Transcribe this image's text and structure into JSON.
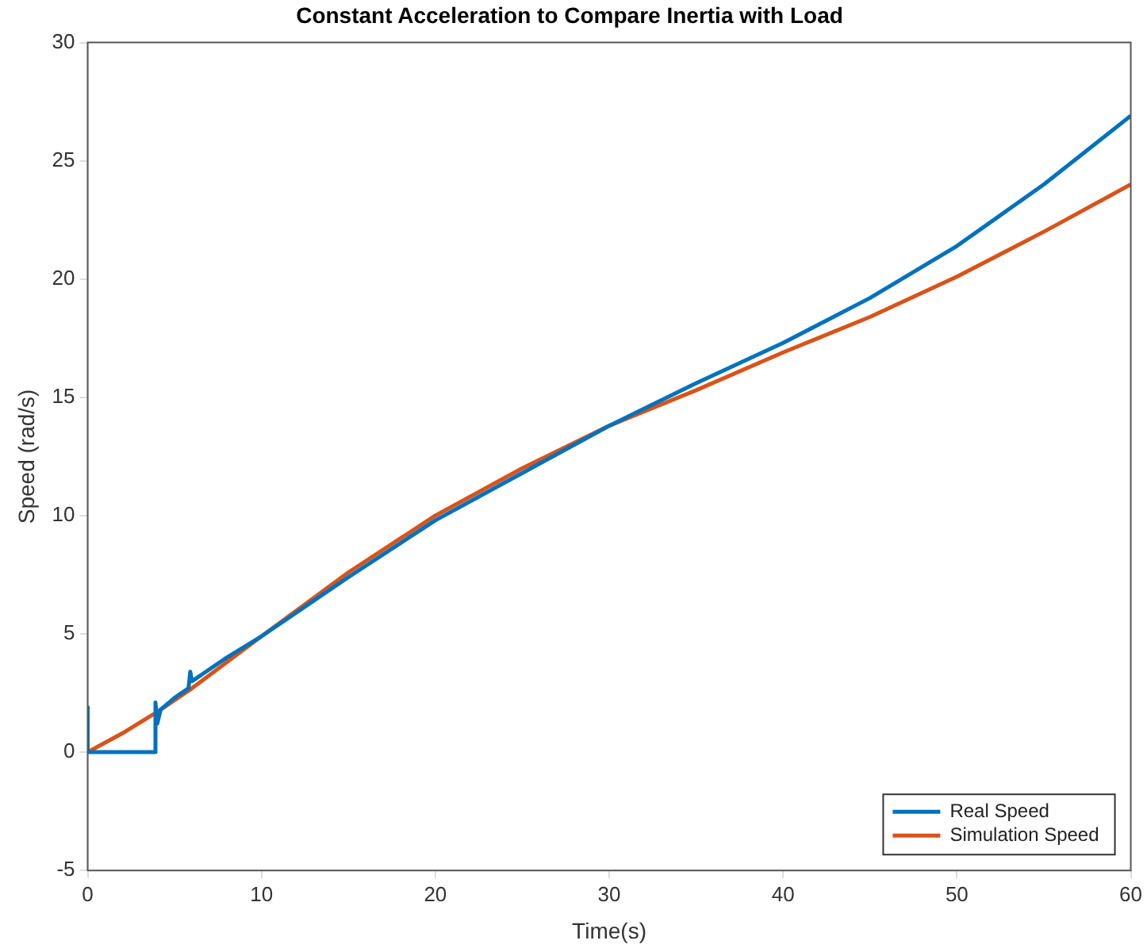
{
  "chart_data": {
    "type": "line",
    "title": "Constant Acceleration to Compare Inertia with Load",
    "xlabel": "Time(s)",
    "ylabel": "Speed (rad/s)",
    "xlim": [
      0,
      60
    ],
    "xticks": [
      0,
      10,
      20,
      30,
      40,
      50,
      60
    ],
    "ylim": [
      -5,
      30
    ],
    "yticks": [
      -5,
      0,
      5,
      10,
      15,
      20,
      25,
      30
    ],
    "grid": false,
    "legend": "bottom right",
    "marker": "none",
    "line_style": "solid",
    "series": [
      {
        "name": "Real Speed",
        "color": "#0072bd",
        "x": [
          0,
          0,
          0,
          3.9,
          3.9,
          4,
          4.2,
          5,
          5.8,
          5.9,
          6,
          7,
          8,
          10,
          12,
          15,
          20,
          25,
          30,
          35,
          40,
          45,
          50,
          55,
          60
        ],
        "values": [
          0,
          1.9,
          0,
          0,
          2.1,
          1.2,
          1.8,
          2.3,
          2.7,
          3.4,
          3,
          3.5,
          4,
          4.9,
          5.9,
          7.4,
          9.8,
          11.8,
          13.8,
          15.6,
          17.3,
          19.2,
          21.4,
          24,
          26.9
        ]
      },
      {
        "name": "Simulation Speed",
        "color": "#d95319",
        "x": [
          0,
          2,
          4,
          6,
          8,
          10,
          15,
          20,
          25,
          30,
          35,
          40,
          45,
          50,
          55,
          60
        ],
        "values": [
          0,
          0.8,
          1.7,
          2.7,
          3.8,
          4.9,
          7.6,
          10,
          12,
          13.8,
          15.3,
          16.9,
          18.4,
          20.1,
          22,
          24
        ]
      }
    ]
  }
}
